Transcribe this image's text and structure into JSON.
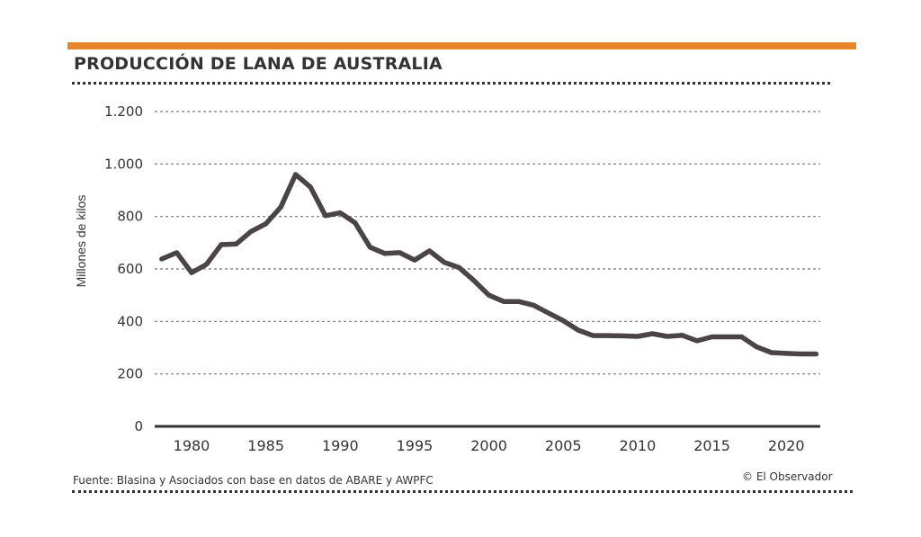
{
  "header": {
    "title": "PRODUCCIÓN DE LANA DE AUSTRALIA",
    "accent_color": "#e8862a"
  },
  "footer": {
    "source": "Fuente: Blasina y Asociados con base en datos de ABARE y AWPFC",
    "copyright": "© El Observador"
  },
  "chart_data": {
    "type": "line",
    "title": "PRODUCCIÓN DE LANA DE AUSTRALIA",
    "xlabel": "",
    "ylabel": "Millones de kilos",
    "xlim": [
      1978,
      2022
    ],
    "ylim": [
      0,
      1200
    ],
    "yticks": [
      0,
      200,
      400,
      600,
      800,
      1000,
      1200
    ],
    "ytick_labels": [
      "0",
      "200",
      "400",
      "600",
      "800",
      "1.000",
      "1.200"
    ],
    "xticks": [
      1980,
      1985,
      1990,
      1995,
      2000,
      2005,
      2010,
      2015,
      2020
    ],
    "xtick_labels": [
      "1980",
      "1985",
      "1990",
      "1995",
      "2000",
      "2005",
      "2010",
      "2015",
      "2020"
    ],
    "grid": "horizontal dotted",
    "line_color": "#4a4446",
    "series": [
      {
        "name": "Producción de lana",
        "x": [
          1978,
          1979,
          1980,
          1981,
          1982,
          1983,
          1984,
          1985,
          1986,
          1987,
          1988,
          1989,
          1990,
          1991,
          1992,
          1993,
          1994,
          1995,
          1996,
          1997,
          1998,
          1999,
          2000,
          2001,
          2002,
          2003,
          2004,
          2005,
          2006,
          2007,
          2008,
          2009,
          2010,
          2011,
          2012,
          2013,
          2014,
          2015,
          2016,
          2017,
          2018,
          2019,
          2020,
          2021,
          2022
        ],
        "values": [
          638,
          662,
          586,
          617,
          693,
          695,
          743,
          772,
          836,
          960,
          912,
          803,
          814,
          776,
          683,
          659,
          662,
          634,
          669,
          625,
          605,
          555,
          500,
          476,
          476,
          462,
          432,
          403,
          367,
          346,
          346,
          345,
          343,
          353,
          343,
          347,
          326,
          341,
          341,
          341,
          303,
          281,
          278,
          276,
          276
        ]
      }
    ]
  }
}
